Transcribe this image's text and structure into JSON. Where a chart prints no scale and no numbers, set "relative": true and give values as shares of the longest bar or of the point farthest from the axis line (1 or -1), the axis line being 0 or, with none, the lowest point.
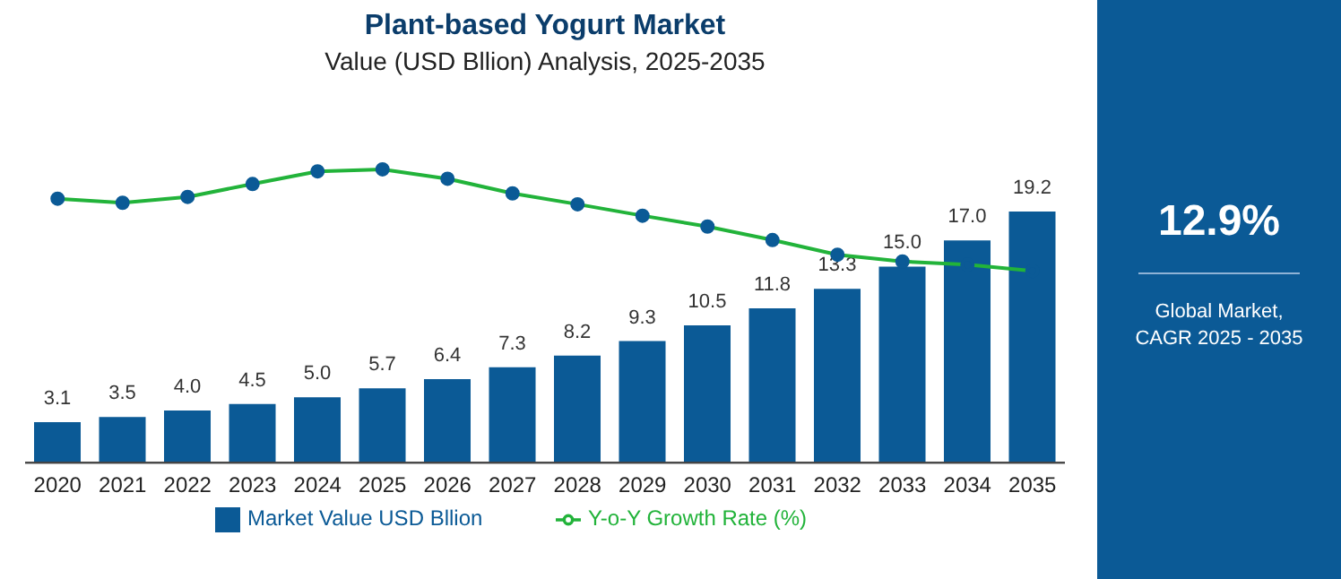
{
  "chart_data": [
    {
      "type": "bar",
      "title": "Plant-based Yogurt Market",
      "subtitle": "Value (USD Bllion) Analysis, 2025-2035",
      "legend": "bottom",
      "categories": [
        "2020",
        "2021",
        "2022",
        "2023",
        "2024",
        "2025",
        "2026",
        "2027",
        "2028",
        "2029",
        "2030",
        "2031",
        "2032",
        "2033",
        "2034",
        "2035"
      ],
      "series": [
        {
          "name": "Market Value USD Bllion",
          "color": "#0b5a96",
          "values": [
            3.1,
            3.5,
            4.0,
            4.5,
            5.0,
            5.7,
            6.4,
            7.3,
            8.2,
            9.3,
            10.5,
            11.8,
            13.3,
            15.0,
            17.0,
            19.2
          ],
          "value_labels": [
            "3.1",
            "3.5",
            "4.0",
            "4.5",
            "5.0",
            "5.7",
            "6.4",
            "7.3",
            "8.2",
            "9.3",
            "10.5",
            "11.8",
            "13.3",
            "15.0",
            "17.0",
            "19.2"
          ]
        }
      ]
    },
    {
      "type": "line",
      "relative": true,
      "tick_labels": false,
      "legend": "bottom",
      "marker": "circle",
      "categories": [
        "2020",
        "2021",
        "2022",
        "2023",
        "2024",
        "2025",
        "2026",
        "2027",
        "2028",
        "2029",
        "2030",
        "2031",
        "2032",
        "2033",
        "2034",
        "2035"
      ],
      "series": [
        {
          "name": "Y-o-Y Growth Rate (%)",
          "color": "#22b33a",
          "values": [
            0.9,
            0.886,
            0.906,
            0.95,
            0.993,
            1,
            0.968,
            0.918,
            0.881,
            0.842,
            0.805,
            0.759,
            0.709,
            0.686,
            0.675,
            0.654
          ]
        }
      ]
    },
    {
      "type": "other",
      "title": "12.9%",
      "annotations": [
        "Global Market, CAGR 2025 - 2035"
      ]
    }
  ]
}
